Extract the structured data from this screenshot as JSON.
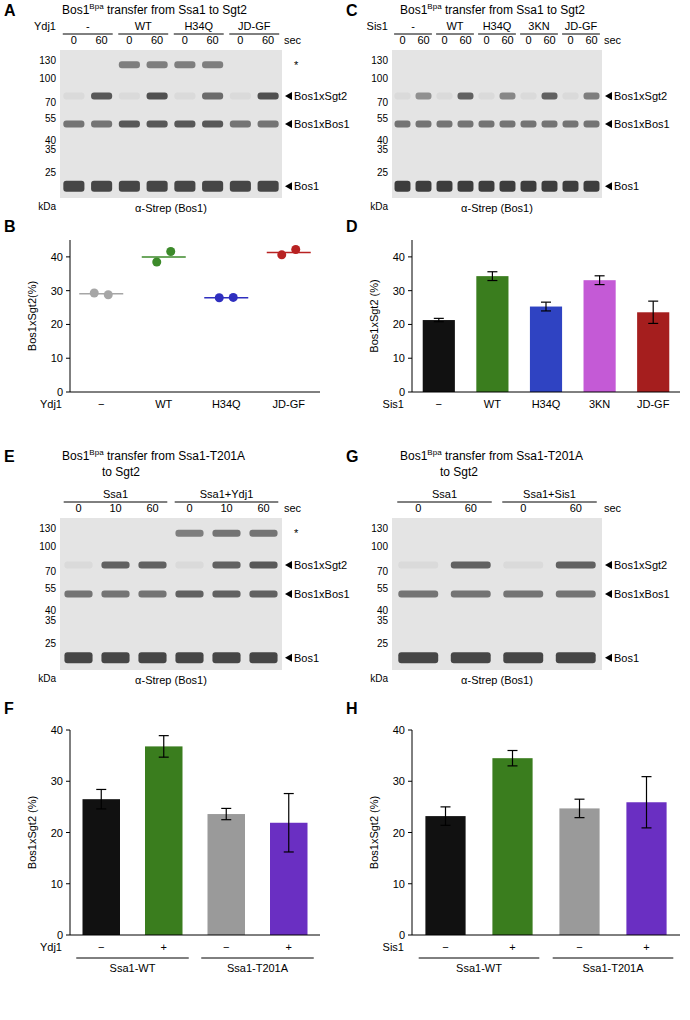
{
  "blots": [
    {
      "panel": "A",
      "title": {
        "name": "Bos1",
        "superscript": "Bpa",
        "lines": [
          " transfer from Ssa1 to Sgt2"
        ]
      },
      "factor": "Ydj1",
      "groups": [
        {
          "label": "-",
          "lanes": [
            0,
            60
          ]
        },
        {
          "label": "WT",
          "lanes": [
            0,
            60
          ]
        },
        {
          "label": "H34Q",
          "lanes": [
            0,
            60
          ]
        },
        {
          "label": "JD-GF",
          "lanes": [
            0,
            60
          ]
        }
      ],
      "time_unit": "sec",
      "markers": [
        130,
        100,
        70,
        55,
        40,
        35,
        25
      ],
      "marker_unit": "kDa",
      "bands": [
        "*",
        "Bos1xSgt2",
        "Bos1xBos1",
        "Bos1"
      ],
      "antibody": "α-Strep (Bos1)"
    },
    {
      "panel": "C",
      "title": {
        "name": "Bos1",
        "superscript": "Bpa",
        "lines": [
          " transfer from Ssa1 to Sgt2"
        ]
      },
      "factor": "Sis1",
      "groups": [
        {
          "label": "-",
          "lanes": [
            0,
            60
          ]
        },
        {
          "label": "WT",
          "lanes": [
            0,
            60
          ]
        },
        {
          "label": "H34Q",
          "lanes": [
            0,
            60
          ]
        },
        {
          "label": "3KN",
          "lanes": [
            0,
            60
          ]
        },
        {
          "label": "JD-GF",
          "lanes": [
            0,
            60
          ]
        }
      ],
      "time_unit": "sec",
      "markers": [
        130,
        100,
        70,
        55,
        40,
        35,
        25
      ],
      "marker_unit": "kDa",
      "bands": [
        "Bos1xSgt2",
        "Bos1xBos1",
        "Bos1"
      ],
      "antibody": "α-Strep (Bos1)"
    },
    {
      "panel": "E",
      "title": {
        "name": "Bos1",
        "superscript": "Bpa",
        "lines": [
          " transfer from Ssa1-T201A",
          "to Sgt2"
        ]
      },
      "groups": [
        {
          "label": "Ssa1",
          "lanes": [
            0,
            10,
            60
          ]
        },
        {
          "label": "Ssa1+Ydj1",
          "lanes": [
            0,
            10,
            60
          ]
        }
      ],
      "time_unit": "sec",
      "markers": [
        130,
        100,
        70,
        55,
        40,
        35,
        25
      ],
      "marker_unit": "kDa",
      "bands": [
        "*",
        "Bos1xSgt2",
        "Bos1xBos1",
        "Bos1"
      ],
      "antibody": "α-Strep (Bos1)"
    },
    {
      "panel": "G",
      "title": {
        "name": "Bos1",
        "superscript": "Bpa",
        "lines": [
          " transfer from Ssa1-T201A",
          "to Sgt2"
        ]
      },
      "groups": [
        {
          "label": "Ssa1",
          "lanes": [
            0,
            60
          ]
        },
        {
          "label": "Ssa1+Sis1",
          "lanes": [
            0,
            60
          ]
        }
      ],
      "time_unit": "sec",
      "markers": [
        130,
        100,
        70,
        55,
        40,
        35,
        25
      ],
      "marker_unit": "kDa",
      "bands": [
        "Bos1xSgt2",
        "Bos1xBos1",
        "Bos1"
      ],
      "antibody": "α-Strep (Bos1)"
    }
  ],
  "chart_data": [
    {
      "panel": "B",
      "type": "scatter",
      "y_label": "Bos1xSgt2(%)",
      "x_label": "Ydj1",
      "categories": [
        "−",
        "WT",
        "H34Q",
        "JD-GF"
      ],
      "points": [
        [
          29.3,
          28.8
        ],
        [
          38.5,
          41.6
        ],
        [
          27.9,
          28.0
        ],
        [
          40.6,
          42.2
        ]
      ],
      "values": [
        29.1,
        40.0,
        27.9,
        41.3
      ],
      "colors": [
        "#a6a6a6",
        "#3c8a2a",
        "#2f2fbf",
        "#b82222"
      ],
      "ylim": [
        0,
        45
      ],
      "yticks": [
        0,
        10,
        20,
        30,
        40
      ]
    },
    {
      "panel": "D",
      "type": "bar",
      "y_label": "Bos1xSgt2 (%)",
      "x_label": "Sis1",
      "categories": [
        "−",
        "WT",
        "H34Q",
        "3KN",
        "JD-GF"
      ],
      "values": [
        21.3,
        34.3,
        25.3,
        33.1,
        23.6
      ],
      "errors": [
        0.5,
        1.3,
        1.3,
        1.3,
        3.3
      ],
      "colors": [
        "#111111",
        "#3a7d1e",
        "#2f43c2",
        "#c45ad6",
        "#a51e1e"
      ],
      "ylim": [
        0,
        45
      ],
      "yticks": [
        0,
        10,
        20,
        30,
        40
      ]
    },
    {
      "panel": "F",
      "type": "bar",
      "y_label": "Bos1xSgt2 (%)",
      "x_label": "Ydj1",
      "categories": [
        "−",
        "+",
        "−",
        "+"
      ],
      "groups": [
        "Ssa1-WT",
        "Ssa1-T201A"
      ],
      "values": [
        26.5,
        36.8,
        23.6,
        21.9
      ],
      "errors": [
        1.9,
        2.1,
        1.1,
        5.7
      ],
      "colors": [
        "#111111",
        "#3a7d1e",
        "#9a9a9a",
        "#6a2fc2"
      ],
      "ylim": [
        0,
        40
      ],
      "yticks": [
        0,
        10,
        20,
        30,
        40
      ]
    },
    {
      "panel": "H",
      "type": "bar",
      "y_label": "Bos1xSgt2 (%)",
      "x_label": "Sis1",
      "categories": [
        "−",
        "+",
        "−",
        "+"
      ],
      "groups": [
        "Ssa1-WT",
        "Ssa1-T201A"
      ],
      "values": [
        23.2,
        34.5,
        24.7,
        25.9
      ],
      "errors": [
        1.8,
        1.5,
        1.8,
        5.0
      ],
      "colors": [
        "#111111",
        "#3a7d1e",
        "#9a9a9a",
        "#6a2fc2"
      ],
      "ylim": [
        0,
        40
      ],
      "yticks": [
        0,
        10,
        20,
        30,
        40
      ]
    }
  ]
}
